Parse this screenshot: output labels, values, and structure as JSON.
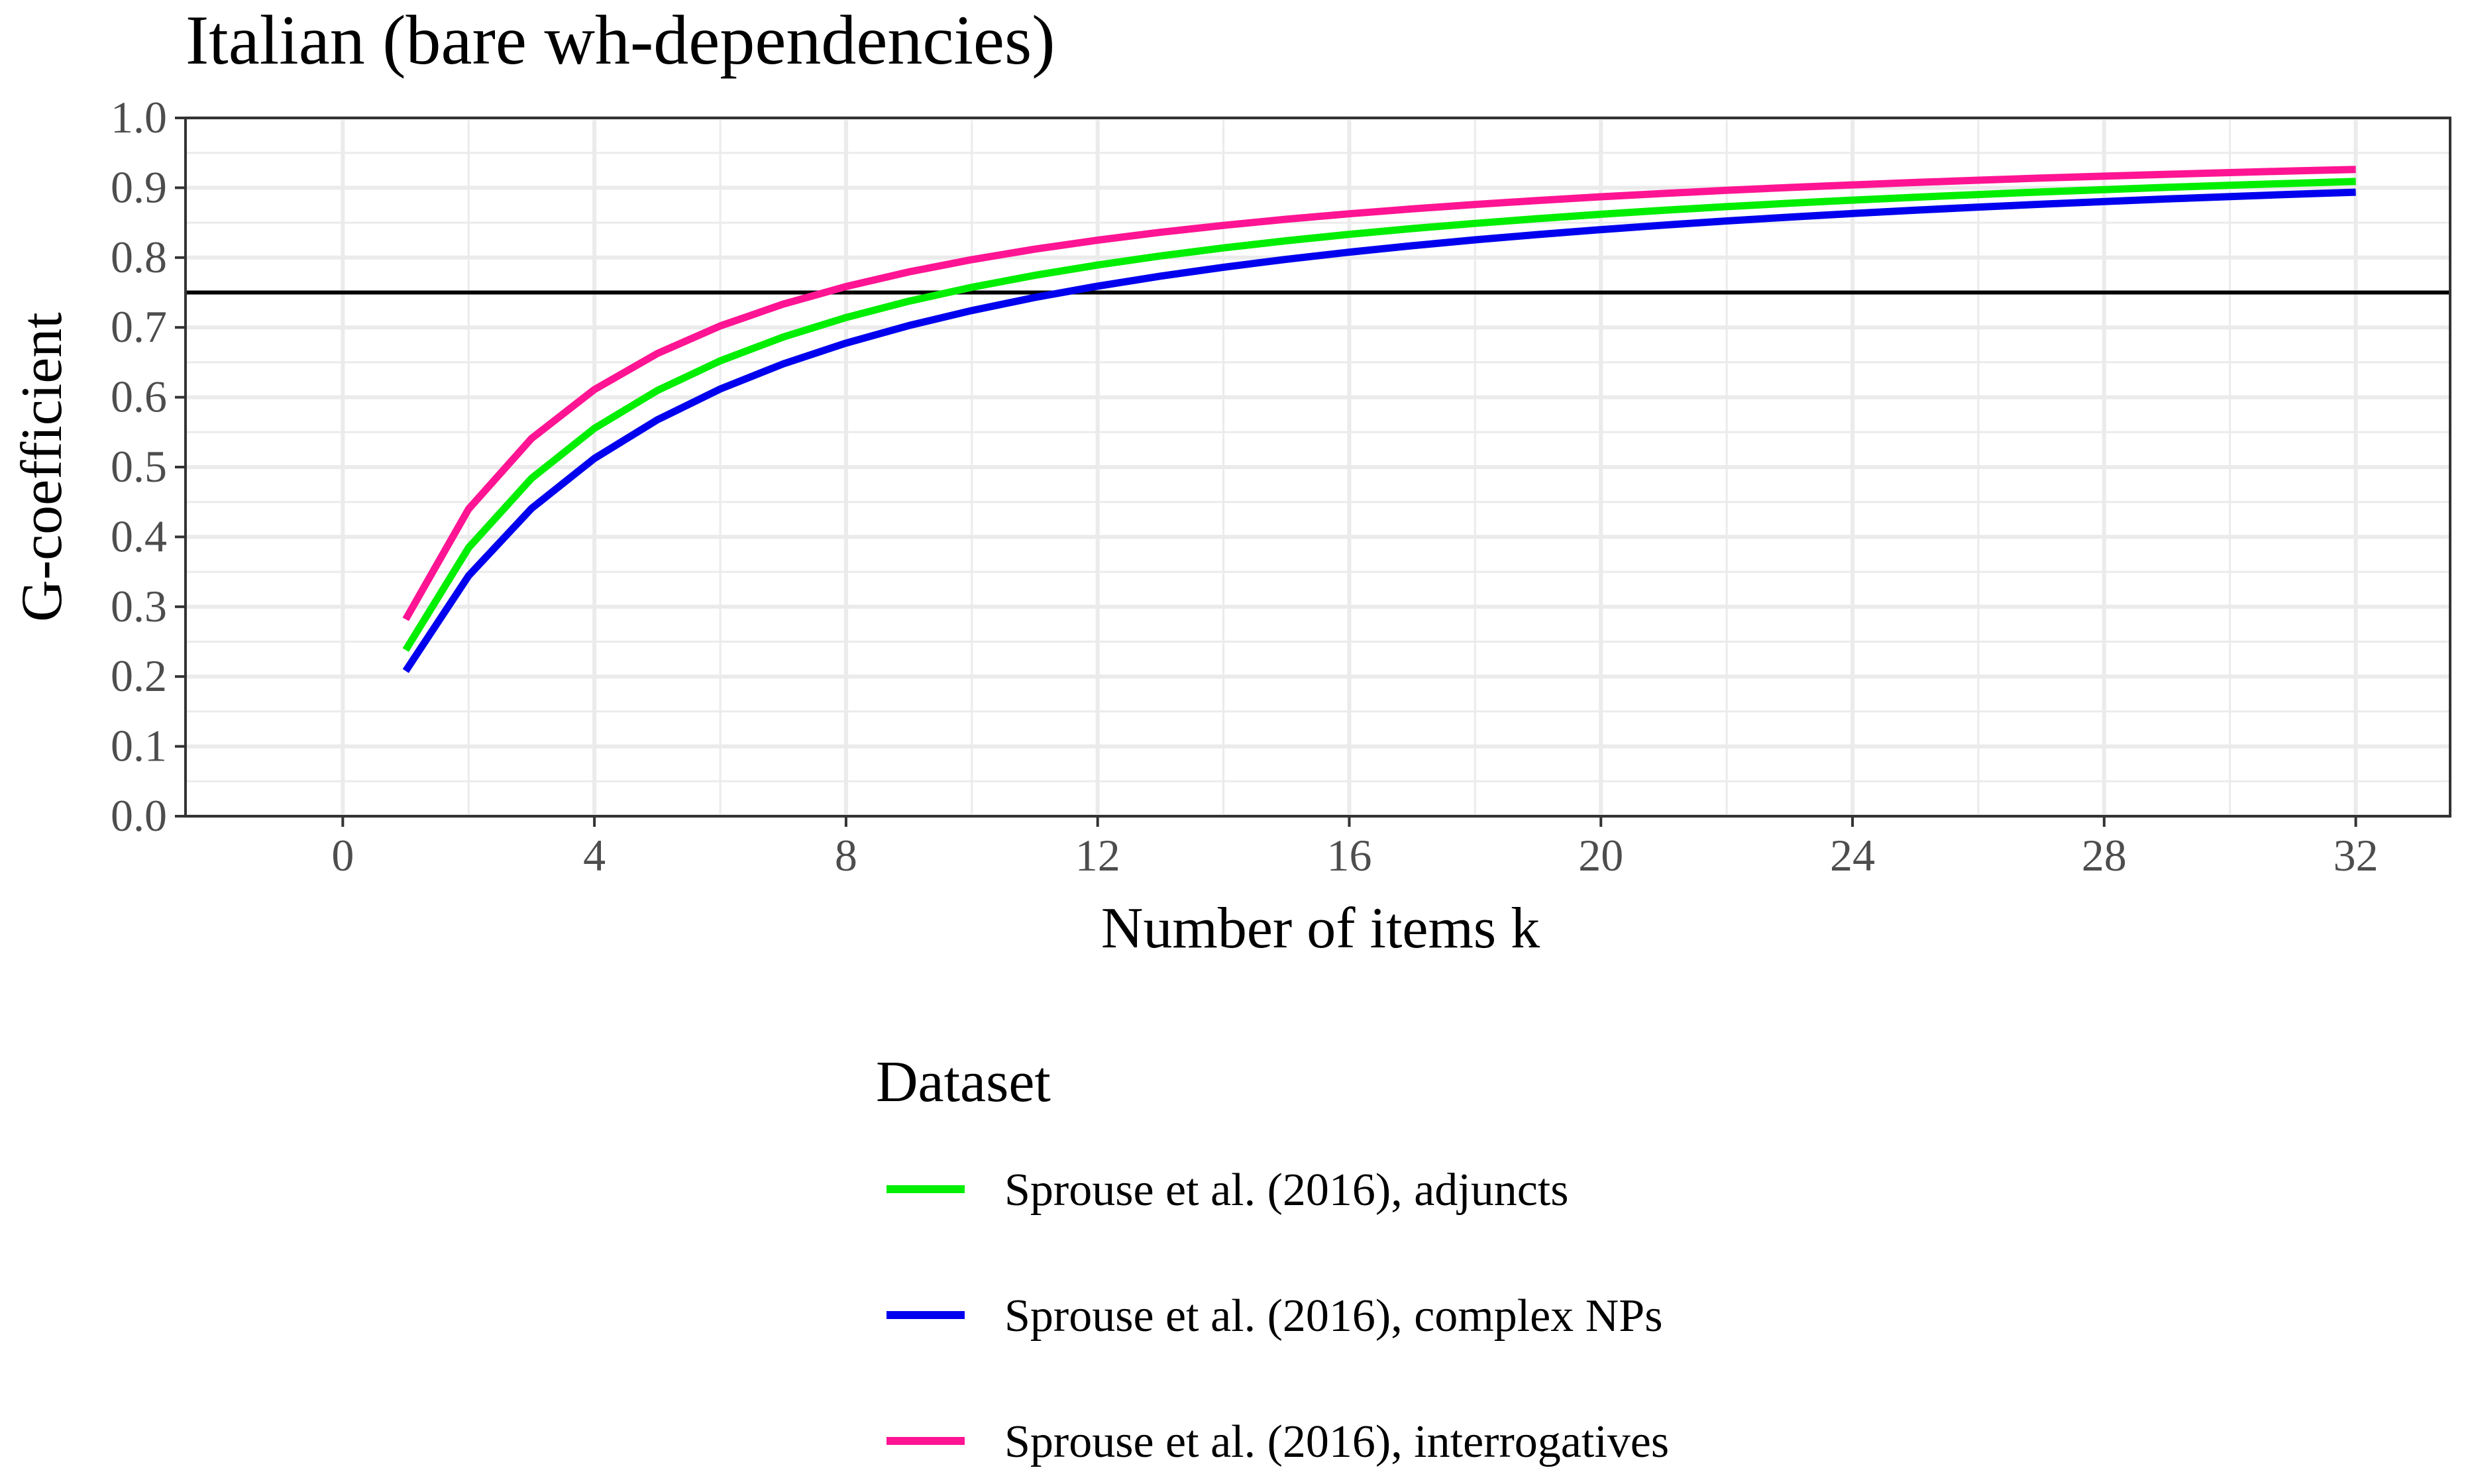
{
  "chart_data": {
    "type": "line",
    "title": "Italian (bare wh-dependencies)",
    "xlabel": "Number of items k",
    "ylabel": "G-coefficient",
    "xlim": [
      -2.5,
      33.5
    ],
    "ylim": [
      0,
      1.0
    ],
    "x_ticks": [
      0,
      4,
      8,
      12,
      16,
      20,
      24,
      28,
      32
    ],
    "y_ticks": [
      0.0,
      0.1,
      0.2,
      0.3,
      0.4,
      0.5,
      0.6,
      0.7,
      0.8,
      0.9,
      1.0
    ],
    "x_tick_labels": [
      "0",
      "4",
      "8",
      "12",
      "16",
      "20",
      "24",
      "28",
      "32"
    ],
    "y_tick_labels": [
      "0.0",
      "0.1",
      "0.2",
      "0.3",
      "0.4",
      "0.5",
      "0.6",
      "0.7",
      "0.8",
      "0.9",
      "1.0"
    ],
    "grid": true,
    "reference_line": {
      "y": 0.75,
      "color": "#000000"
    },
    "legend": {
      "title": "Dataset",
      "position": "bottom",
      "entries": [
        "Sprouse et al. (2016), adjuncts",
        "Sprouse et al. (2016), complex NPs",
        "Sprouse et al. (2016), interrogatives"
      ]
    },
    "series": [
      {
        "name": "Sprouse et al. (2016), adjuncts",
        "color": "#00ee00",
        "single_item_g": 0.238
      },
      {
        "name": "Sprouse et al. (2016), complex NPs",
        "color": "#0000ee",
        "single_item_g": 0.208
      },
      {
        "name": "Sprouse et al. (2016), interrogatives",
        "color": "#ff1493",
        "single_item_g": 0.282
      }
    ],
    "k_values": [
      1,
      2,
      3,
      4,
      5,
      6,
      7,
      8,
      9,
      10,
      11,
      12,
      13,
      14,
      15,
      16,
      17,
      18,
      19,
      20,
      21,
      22,
      23,
      24,
      25,
      26,
      27,
      28,
      29,
      30,
      31,
      32
    ]
  }
}
